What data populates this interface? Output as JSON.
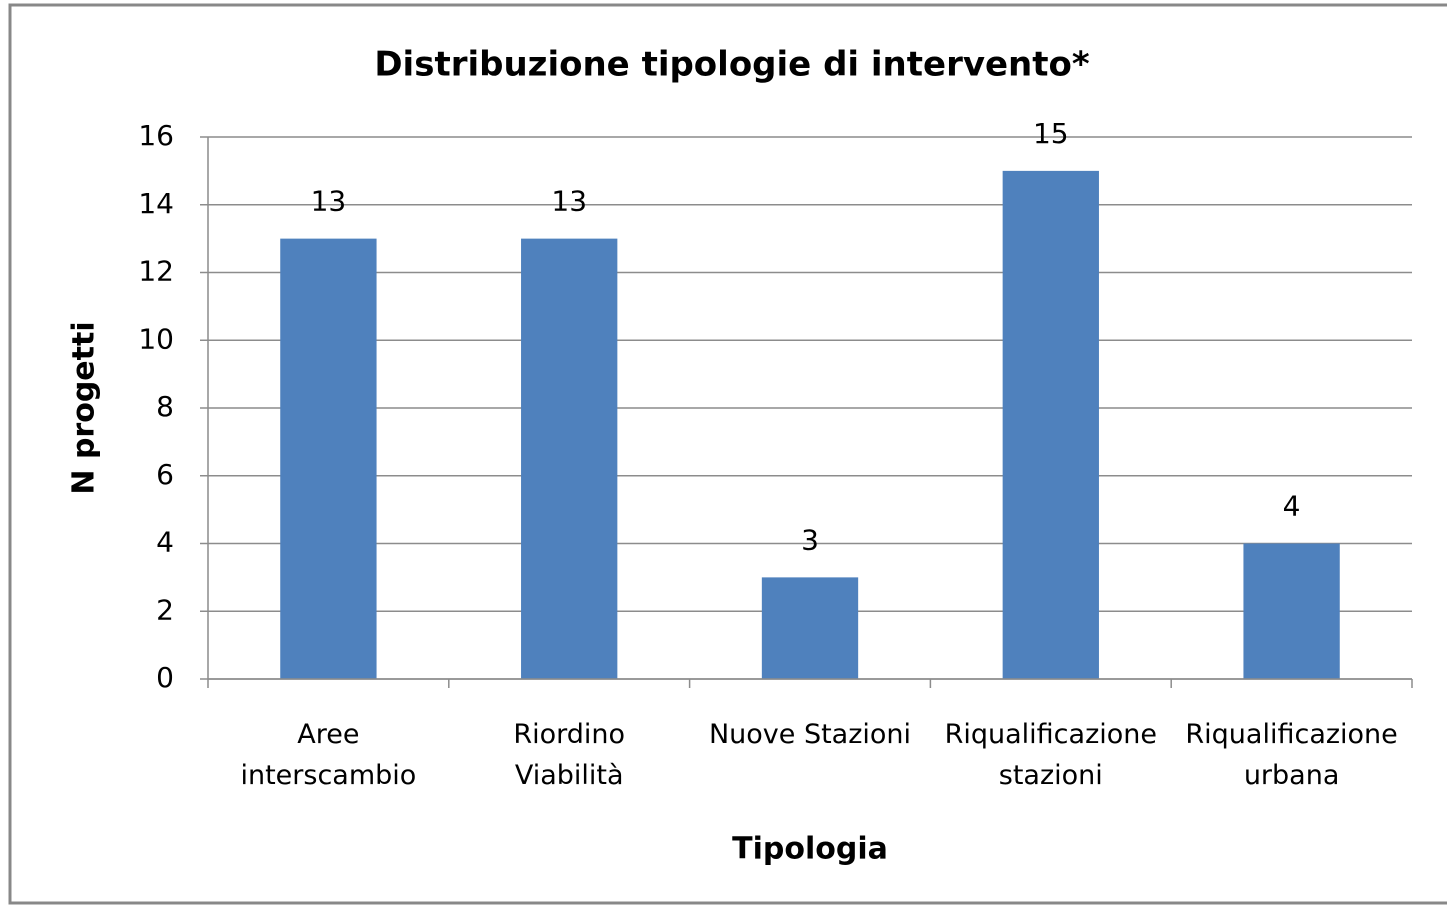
{
  "chart_data": {
    "type": "bar",
    "title": "Distribuzione tipologie di intervento*",
    "x_label": "Tipologia",
    "y_label": "N progetti",
    "categories": [
      "Aree\ninterscambio",
      "Riordino\nViabilità",
      "Nuove Stazioni",
      "Riqualificazione\nstazioni",
      "Riqualificazione\nurbana"
    ],
    "values": [
      13,
      13,
      3,
      15,
      4
    ],
    "color": "#4f81bd",
    "ylim": [
      0,
      16
    ],
    "yticks": [
      0,
      2,
      4,
      6,
      8,
      10,
      12,
      14,
      16
    ],
    "grid": true
  }
}
